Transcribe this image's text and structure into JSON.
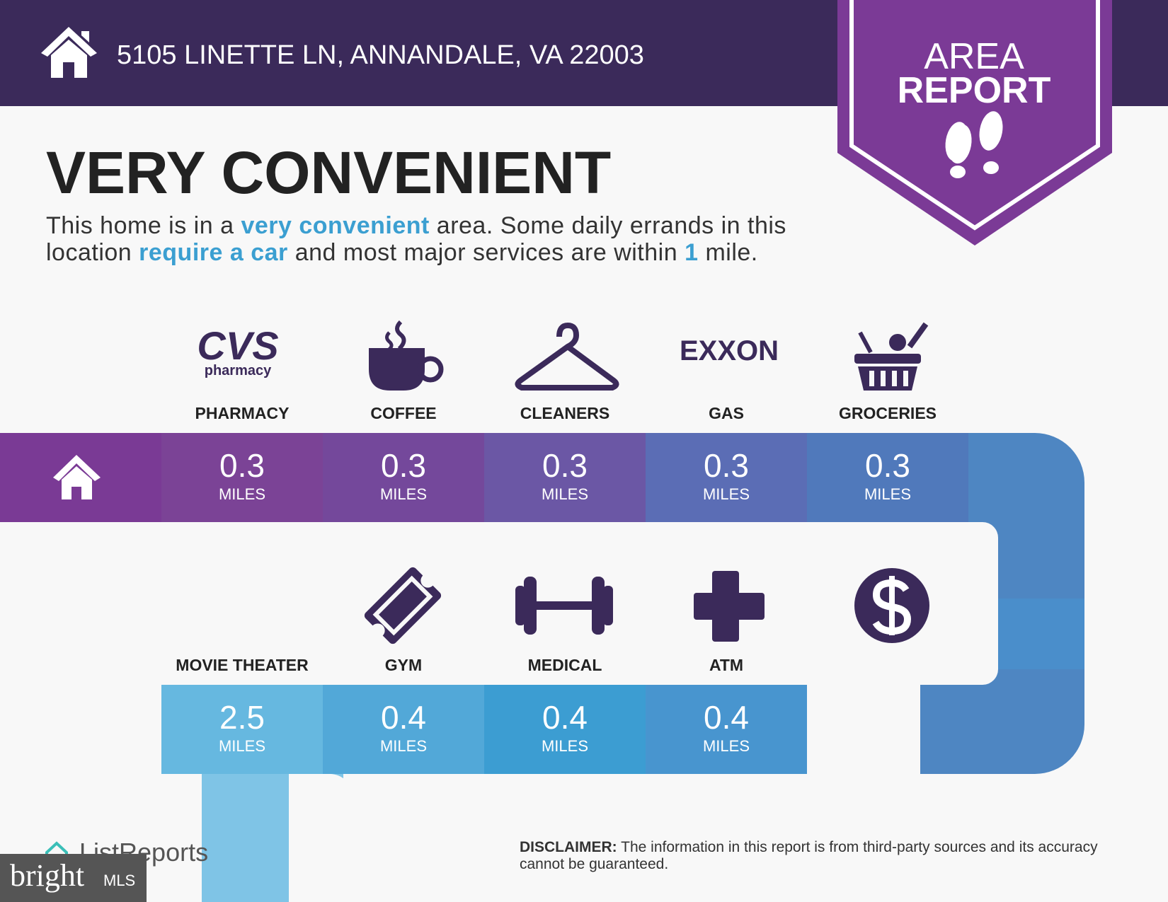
{
  "header": {
    "address": "5105 LINETTE LN, ANNANDALE, VA 22003"
  },
  "badge": {
    "line1": "AREA",
    "line2": "REPORT"
  },
  "title": "VERY CONVENIENT",
  "description": [
    {
      "text": "This home is in a ",
      "highlight": false
    },
    {
      "text": "very convenient",
      "highlight": true
    },
    {
      "text": " area. Some daily errands in this location ",
      "highlight": false
    },
    {
      "text": "require a car",
      "highlight": true
    },
    {
      "text": " and most major services are within ",
      "highlight": false
    },
    {
      "text": "1",
      "highlight": true
    },
    {
      "text": " mile.",
      "highlight": false
    }
  ],
  "logos": {
    "cvs": "CVS",
    "cvs_sub": "pharmacy",
    "exxon": "EXXON"
  },
  "services": [
    {
      "name": "PHARMACY",
      "distance": 0.3,
      "unit": "MILES"
    },
    {
      "name": "COFFEE",
      "distance": 0.3,
      "unit": "MILES"
    },
    {
      "name": "CLEANERS",
      "distance": 0.3,
      "unit": "MILES"
    },
    {
      "name": "GAS",
      "distance": 0.3,
      "unit": "MILES"
    },
    {
      "name": "GROCERIES",
      "distance": 0.3,
      "unit": "MILES"
    },
    {
      "name": "MOVIE THEATER",
      "distance": 2.5,
      "unit": "MILES"
    },
    {
      "name": "GYM",
      "distance": 0.4,
      "unit": "MILES"
    },
    {
      "name": "MEDICAL",
      "distance": 0.4,
      "unit": "MILES"
    },
    {
      "name": "ATM",
      "distance": 0.4,
      "unit": "MILES"
    }
  ],
  "footer": {
    "brand": "ListReports",
    "mls_brand": "bright",
    "mls_suffix": "MLS",
    "disclaimer_label": "DISCLAIMER:",
    "disclaimer_text": "The information in this report is from third-party sources and its accuracy cannot be guaranteed."
  }
}
